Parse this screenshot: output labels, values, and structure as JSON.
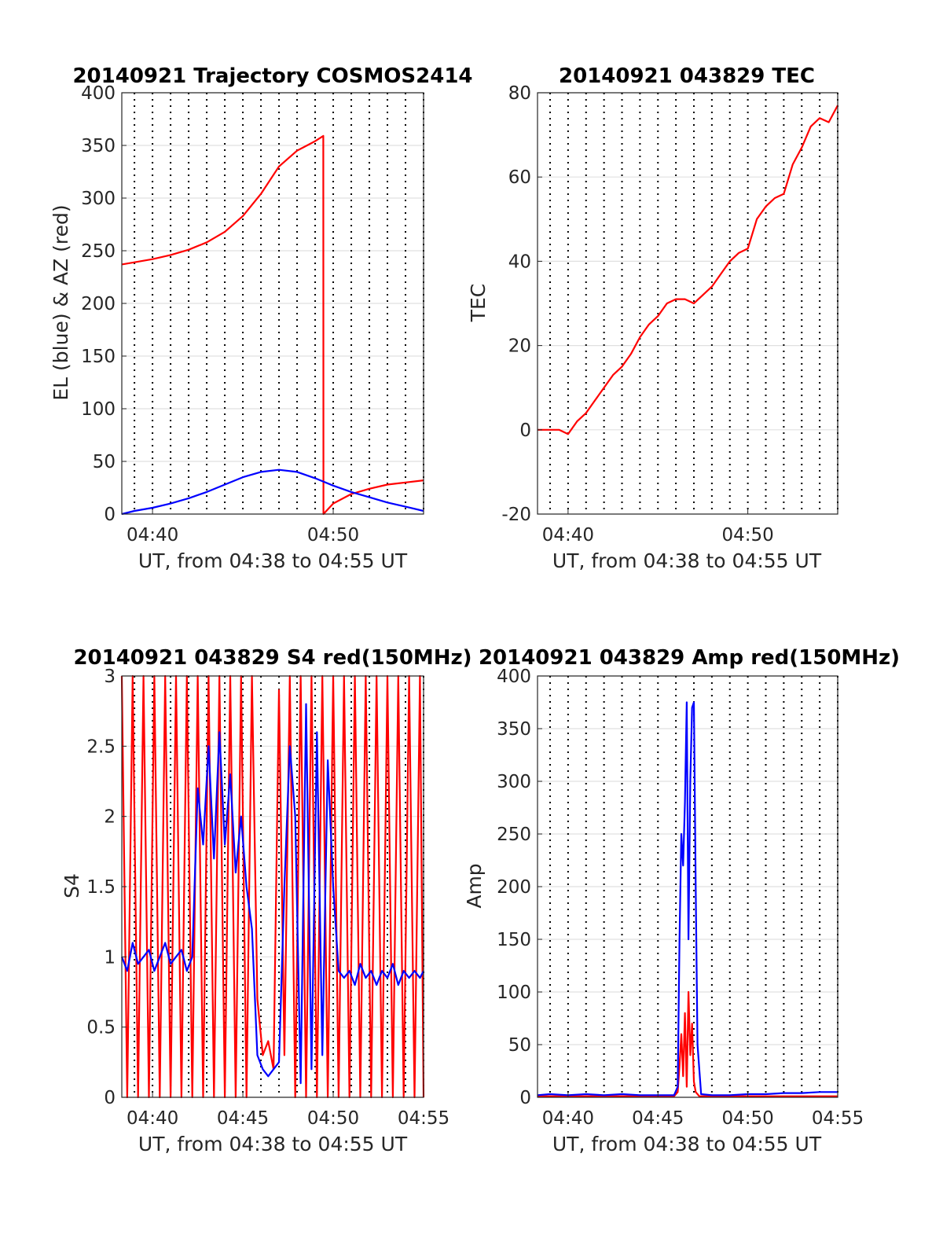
{
  "chart_data": [
    {
      "id": "traj",
      "type": "line",
      "title": "20140921 Trajectory COSMOS2414",
      "xlabel": "UT, from 04:38 to 04:55 UT",
      "ylabel": "EL (blue) & AZ (red)",
      "xlim": [
        38.3,
        55
      ],
      "ylim": [
        0,
        400
      ],
      "yticks": [
        0,
        50,
        100,
        150,
        200,
        250,
        300,
        350,
        400
      ],
      "xticks": [
        {
          "v": 40,
          "label": "04:40"
        },
        {
          "v": 50,
          "label": "04:50"
        }
      ],
      "grid": true,
      "series": [
        {
          "color": "#ff0000",
          "x": [
            38.3,
            39,
            40,
            41,
            42,
            43,
            44,
            45,
            46,
            47,
            48,
            49,
            49.45,
            49.46,
            50,
            51,
            52,
            53,
            54,
            55
          ],
          "y": [
            237,
            239,
            242,
            246,
            251,
            258,
            268,
            283,
            304,
            330,
            345,
            354,
            359,
            0,
            10,
            19,
            24,
            28,
            30,
            32
          ]
        },
        {
          "color": "#0000ff",
          "x": [
            38.3,
            39,
            40,
            41,
            42,
            43,
            44,
            45,
            46,
            47,
            48,
            49,
            50,
            51,
            52,
            53,
            54,
            55
          ],
          "y": [
            0,
            3,
            6,
            10,
            15,
            21,
            28,
            35,
            40,
            42,
            40,
            34,
            27,
            21,
            16,
            11,
            7,
            3
          ]
        }
      ]
    },
    {
      "id": "tec",
      "type": "line",
      "title": "20140921 043829 TEC",
      "xlabel": "UT, from 04:38 to 04:55 UT",
      "ylabel": "TEC",
      "xlim": [
        38.3,
        55
      ],
      "ylim": [
        -20,
        80
      ],
      "yticks": [
        -20,
        0,
        20,
        40,
        60,
        80
      ],
      "xticks": [
        {
          "v": 40,
          "label": "04:40"
        },
        {
          "v": 50,
          "label": "04:50"
        }
      ],
      "grid": true,
      "series": [
        {
          "color": "#ff0000",
          "x": [
            38.3,
            39,
            39.5,
            40,
            40.5,
            41,
            41.5,
            42,
            42.5,
            43,
            43.5,
            44,
            44.5,
            45,
            45.5,
            46,
            46.5,
            47,
            47.5,
            48,
            48.5,
            49,
            49.5,
            50,
            50.5,
            51,
            51.5,
            52,
            52.5,
            53,
            53.5,
            54,
            54.5,
            55
          ],
          "y": [
            0,
            0,
            0,
            -1,
            2,
            4,
            7,
            10,
            13,
            15,
            18,
            22,
            25,
            27,
            30,
            31,
            31,
            30,
            32,
            34,
            37,
            40,
            42,
            43,
            50,
            53,
            55,
            56,
            63,
            67,
            72,
            74,
            73,
            77
          ]
        }
      ]
    },
    {
      "id": "s4",
      "type": "line",
      "title": "20140921 043829 S4 red(150MHz)",
      "xlabel": "UT, from 04:38 to 04:55 UT",
      "ylabel": "S4",
      "xlim": [
        38.3,
        55
      ],
      "ylim": [
        0,
        3
      ],
      "yticks": [
        0,
        0.5,
        1,
        1.5,
        2,
        2.5,
        3
      ],
      "xticks": [
        {
          "v": 40,
          "label": "04:40"
        },
        {
          "v": 45,
          "label": "04:45"
        },
        {
          "v": 50,
          "label": "04:50"
        },
        {
          "v": 55,
          "label": "04:55"
        }
      ],
      "grid": true,
      "series": [
        {
          "color": "#ff0000",
          "x": [
            38.3,
            38.6,
            38.9,
            39.2,
            39.5,
            39.8,
            40.1,
            40.4,
            40.7,
            41.0,
            41.3,
            41.6,
            41.9,
            42.2,
            42.5,
            42.8,
            43.1,
            43.4,
            43.7,
            44.0,
            44.3,
            44.6,
            44.9,
            45.2,
            45.5,
            45.8,
            46.1,
            46.4,
            46.7,
            47.0,
            47.3,
            47.6,
            47.9,
            48.2,
            48.5,
            48.8,
            49.1,
            49.4,
            49.7,
            50.0,
            50.3,
            50.6,
            50.9,
            51.2,
            51.5,
            51.8,
            52.1,
            52.4,
            52.7,
            53.0,
            53.3,
            53.6,
            53.9,
            54.2,
            54.5,
            54.8,
            55
          ],
          "y": [
            3,
            0,
            3,
            0,
            3,
            0,
            3,
            0,
            3,
            0,
            3,
            0,
            3,
            0,
            3,
            0,
            3,
            0,
            3,
            0,
            3,
            0,
            3,
            0,
            3,
            0.7,
            0.3,
            0.4,
            0.2,
            2.9,
            0.3,
            3,
            0,
            3,
            0,
            3,
            0,
            3,
            0,
            3,
            0,
            3,
            0,
            3,
            0,
            3,
            0,
            3,
            0,
            3,
            0,
            3,
            0,
            3,
            0,
            3,
            0
          ]
        },
        {
          "color": "#0000ff",
          "x": [
            38.3,
            38.6,
            38.9,
            39.2,
            39.5,
            39.8,
            40.1,
            40.4,
            40.7,
            41.0,
            41.3,
            41.6,
            41.9,
            42.2,
            42.5,
            42.8,
            43.1,
            43.4,
            43.7,
            44.0,
            44.3,
            44.6,
            44.9,
            45.2,
            45.5,
            45.8,
            46.1,
            46.4,
            46.7,
            47.0,
            47.3,
            47.6,
            47.9,
            48.2,
            48.5,
            48.8,
            49.1,
            49.4,
            49.7,
            50.0,
            50.3,
            50.6,
            50.9,
            51.2,
            51.5,
            51.8,
            52.1,
            52.4,
            52.7,
            53.0,
            53.3,
            53.6,
            53.9,
            54.2,
            54.5,
            54.8,
            55
          ],
          "y": [
            1.0,
            0.9,
            1.1,
            0.95,
            1.0,
            1.05,
            0.9,
            1.0,
            1.1,
            0.95,
            1.0,
            1.05,
            0.9,
            1.0,
            2.2,
            1.8,
            2.5,
            1.7,
            2.6,
            1.8,
            2.3,
            1.6,
            2.0,
            1.5,
            1.2,
            0.3,
            0.2,
            0.15,
            0.2,
            0.25,
            1.5,
            2.5,
            2.0,
            0.1,
            2.8,
            0.2,
            2.6,
            0.3,
            2.4,
            1.5,
            0.9,
            0.85,
            0.9,
            0.8,
            0.95,
            0.85,
            0.9,
            0.8,
            0.9,
            0.85,
            0.95,
            0.8,
            0.9,
            0.85,
            0.9,
            0.85,
            0.9
          ]
        }
      ]
    },
    {
      "id": "amp",
      "type": "line",
      "title": "20140921 043829 Amp red(150MHz)",
      "xlabel": "UT, from 04:38 to 04:55 UT",
      "ylabel": "Amp",
      "xlim": [
        38.3,
        55
      ],
      "ylim": [
        0,
        400
      ],
      "yticks": [
        0,
        50,
        100,
        150,
        200,
        250,
        300,
        350,
        400
      ],
      "xticks": [
        {
          "v": 40,
          "label": "04:40"
        },
        {
          "v": 45,
          "label": "04:45"
        },
        {
          "v": 50,
          "label": "04:50"
        },
        {
          "v": 55,
          "label": "04:55"
        }
      ],
      "grid": true,
      "series": [
        {
          "color": "#ff0000",
          "x": [
            38.3,
            45.9,
            46.1,
            46.2,
            46.3,
            46.4,
            46.5,
            46.6,
            46.7,
            46.8,
            46.9,
            47.0,
            47.1,
            47.3,
            55
          ],
          "y": [
            1,
            1,
            5,
            30,
            60,
            20,
            80,
            10,
            100,
            40,
            70,
            15,
            5,
            1,
            1
          ]
        },
        {
          "color": "#0000ff",
          "x": [
            38.3,
            39,
            40,
            41,
            42,
            43,
            44,
            45,
            45.9,
            46.1,
            46.2,
            46.3,
            46.4,
            46.5,
            46.6,
            46.7,
            46.8,
            46.9,
            47.0,
            47.1,
            47.2,
            47.4,
            48,
            49,
            50,
            51,
            52,
            53,
            54,
            55
          ],
          "y": [
            2,
            3,
            2,
            3,
            2,
            3,
            2,
            2,
            2,
            10,
            150,
            250,
            220,
            280,
            375,
            150,
            300,
            370,
            375,
            200,
            50,
            3,
            2,
            2,
            3,
            3,
            4,
            4,
            5,
            5
          ]
        }
      ]
    }
  ]
}
